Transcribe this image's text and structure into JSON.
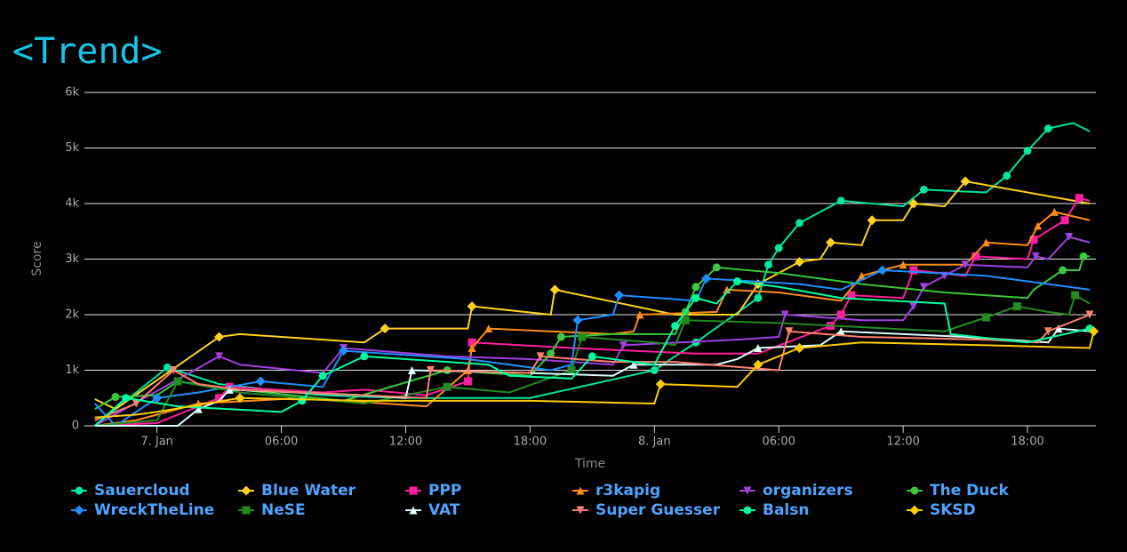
{
  "chart_data": {
    "type": "line",
    "title": "<Trend>",
    "x_label": "Time",
    "y_label": "Score",
    "xlim": [
      -3.5,
      45.3
    ],
    "ylim": [
      0,
      6000
    ],
    "xticks": [
      {
        "value": 0,
        "label": "7. Jan"
      },
      {
        "value": 6,
        "label": "06:00"
      },
      {
        "value": 12,
        "label": "12:00"
      },
      {
        "value": 18,
        "label": "18:00"
      },
      {
        "value": 24,
        "label": "8. Jan"
      },
      {
        "value": 30,
        "label": "06:00"
      },
      {
        "value": 36,
        "label": "12:00"
      },
      {
        "value": 42,
        "label": "18:00"
      }
    ],
    "yticks": [
      0,
      {
        "value": 1000,
        "label": "1k"
      },
      {
        "value": 2000,
        "label": "2k"
      },
      {
        "value": 3000,
        "label": "3k"
      },
      {
        "value": 4000,
        "label": "4k"
      },
      {
        "value": 5000,
        "label": "5k"
      },
      {
        "value": 6000,
        "label": "6k"
      }
    ],
    "grid": true,
    "series": [
      {
        "name": "Sauercloud",
        "color": "#00e5a0",
        "marker": "circle",
        "x": [
          -3,
          0.5,
          3,
          8,
          12,
          18,
          24,
          26,
          29,
          29.5,
          30,
          31,
          33,
          36,
          37,
          40,
          41,
          42,
          43,
          44.2,
          45
        ],
        "values": [
          0,
          1050,
          750,
          550,
          500,
          500,
          1000,
          1500,
          2300,
          2900,
          3200,
          3650,
          4050,
          3950,
          4250,
          4200,
          4500,
          4950,
          5350,
          5450,
          5300
        ]
      },
      {
        "name": "Blue Water",
        "color": "#ffd21f",
        "marker": "diamond",
        "x": [
          -3,
          -2,
          3,
          4,
          10,
          11,
          15,
          15.2,
          19,
          19.2,
          25,
          28,
          29,
          31,
          32,
          32.5,
          34,
          34.5,
          36,
          36.5,
          38,
          39,
          45
        ],
        "values": [
          480,
          300,
          1600,
          1650,
          1500,
          1750,
          1750,
          2150,
          2000,
          2450,
          2000,
          2000,
          2550,
          2950,
          3000,
          3300,
          3250,
          3700,
          3700,
          4000,
          3950,
          4400,
          4000
        ]
      },
      {
        "name": "PPP",
        "color": "#ff1f9e",
        "marker": "square",
        "x": [
          -3,
          0,
          3,
          3.5,
          8,
          10,
          13,
          15,
          15.2,
          20,
          26,
          29,
          32.5,
          33,
          33.5,
          36,
          36.5,
          39,
          39.5,
          42,
          42.3,
          43.8,
          44.5,
          45
        ],
        "values": [
          0,
          50,
          500,
          700,
          600,
          650,
          550,
          800,
          1500,
          1400,
          1300,
          1300,
          1800,
          2000,
          2350,
          2300,
          2800,
          2700,
          3050,
          3000,
          3350,
          3700,
          4100,
          4050
        ]
      },
      {
        "name": "r3kapig",
        "color": "#ff8c1a",
        "marker": "triangle",
        "x": [
          -3,
          -1,
          2,
          7,
          13,
          15,
          15.2,
          16,
          22,
          23,
          23.3,
          27,
          27.5,
          30,
          33,
          34,
          36,
          39,
          40,
          42,
          42.5,
          43.3,
          45
        ],
        "values": [
          0,
          100,
          400,
          500,
          350,
          1000,
          1400,
          1750,
          1650,
          1700,
          2000,
          2050,
          2450,
          2400,
          2250,
          2700,
          2900,
          2900,
          3300,
          3250,
          3600,
          3850,
          3700
        ]
      },
      {
        "name": "organizers",
        "color": "#a040e0",
        "marker": "triangle-down",
        "x": [
          -3,
          3,
          4,
          8,
          9,
          14,
          18,
          22,
          22.5,
          28,
          30,
          30.3,
          34,
          36,
          36.5,
          37,
          38,
          39,
          42,
          42.4,
          43,
          44,
          45
        ],
        "values": [
          0,
          1250,
          1100,
          950,
          1400,
          1250,
          1200,
          1100,
          1450,
          1550,
          1600,
          2000,
          1900,
          1900,
          2150,
          2500,
          2700,
          2900,
          2850,
          3050,
          3000,
          3400,
          3300
        ]
      },
      {
        "name": "The Duck",
        "color": "#3cc83c",
        "marker": "circle",
        "x": [
          -3,
          -2,
          0,
          1,
          4,
          9,
          14,
          18,
          19,
          19.5,
          22,
          25,
          25.5,
          26,
          27,
          30,
          34,
          38,
          42,
          42.3,
          43.7,
          44.5,
          44.7,
          45
        ],
        "values": [
          300,
          520,
          550,
          800,
          650,
          450,
          1000,
          900,
          1300,
          1600,
          1650,
          1650,
          2050,
          2500,
          2850,
          2750,
          2550,
          2400,
          2300,
          2450,
          2800,
          2800,
          3050,
          3050
        ]
      },
      {
        "name": "WreckTheLine",
        "color": "#1e90ff",
        "marker": "diamond",
        "x": [
          -3,
          -2,
          0,
          2,
          5,
          8,
          9,
          15,
          19,
          20,
          20.3,
          22,
          22.3,
          26,
          26.5,
          31,
          33,
          35,
          40,
          45
        ],
        "values": [
          400,
          0,
          500,
          600,
          800,
          700,
          1350,
          1200,
          1000,
          1100,
          1900,
          2000,
          2350,
          2250,
          2650,
          2550,
          2450,
          2800,
          2700,
          2450
        ]
      },
      {
        "name": "NeSE",
        "color": "#228b22",
        "marker": "square",
        "x": [
          -3,
          0,
          1,
          4,
          10,
          14,
          17,
          20,
          20.5,
          24,
          25,
          25.5,
          30,
          38,
          40,
          41.5,
          43,
          44,
          44.3,
          45
        ],
        "values": [
          0,
          100,
          800,
          600,
          400,
          700,
          600,
          1000,
          1600,
          1500,
          1450,
          1900,
          1850,
          1700,
          1950,
          2150,
          2050,
          2000,
          2350,
          2200
        ]
      },
      {
        "name": "VAT",
        "color": "#dcffff",
        "marker": "triangle",
        "x": [
          -3,
          1,
          2,
          3,
          3.5,
          10,
          12,
          12.3,
          18,
          22,
          23,
          27,
          28,
          29,
          32,
          33,
          39,
          43,
          43.5,
          45
        ],
        "values": [
          0,
          0,
          300,
          450,
          650,
          550,
          500,
          1000,
          950,
          900,
          1100,
          1100,
          1200,
          1400,
          1450,
          1700,
          1600,
          1500,
          1750,
          1700
        ]
      },
      {
        "name": "Super Guesser",
        "color": "#ff8070",
        "marker": "triangle-down",
        "x": [
          -3,
          -1,
          0.8,
          2,
          4,
          10,
          13,
          13.2,
          18,
          18.5,
          22,
          25,
          30,
          30.5,
          34,
          40,
          42.5,
          43,
          45
        ],
        "values": [
          100,
          400,
          1000,
          750,
          650,
          550,
          500,
          1000,
          950,
          1250,
          1150,
          1150,
          1000,
          1700,
          1600,
          1550,
          1500,
          1700,
          2000
        ]
      },
      {
        "name": "Balsn",
        "color": "#00ff9f",
        "marker": "circle",
        "x": [
          -3,
          -1.5,
          1,
          6,
          7,
          8,
          10,
          16,
          17,
          20,
          21,
          24,
          25,
          26,
          27,
          28,
          30,
          33,
          38,
          38.3,
          42,
          45
        ],
        "values": [
          0,
          500,
          350,
          250,
          450,
          900,
          1250,
          1100,
          900,
          850,
          1250,
          1100,
          1800,
          2300,
          2200,
          2600,
          2500,
          2300,
          2200,
          1650,
          1500,
          1750
        ]
      },
      {
        "name": "SKSD",
        "color": "#ffcc00",
        "marker": "diamond",
        "x": [
          -3,
          -1,
          0,
          4,
          10,
          18,
          24,
          24.3,
          28,
          29,
          31,
          34,
          40,
          45,
          45.2
        ],
        "values": [
          150,
          200,
          250,
          500,
          450,
          450,
          400,
          750,
          700,
          1100,
          1400,
          1500,
          1450,
          1400,
          1700
        ]
      }
    ]
  }
}
